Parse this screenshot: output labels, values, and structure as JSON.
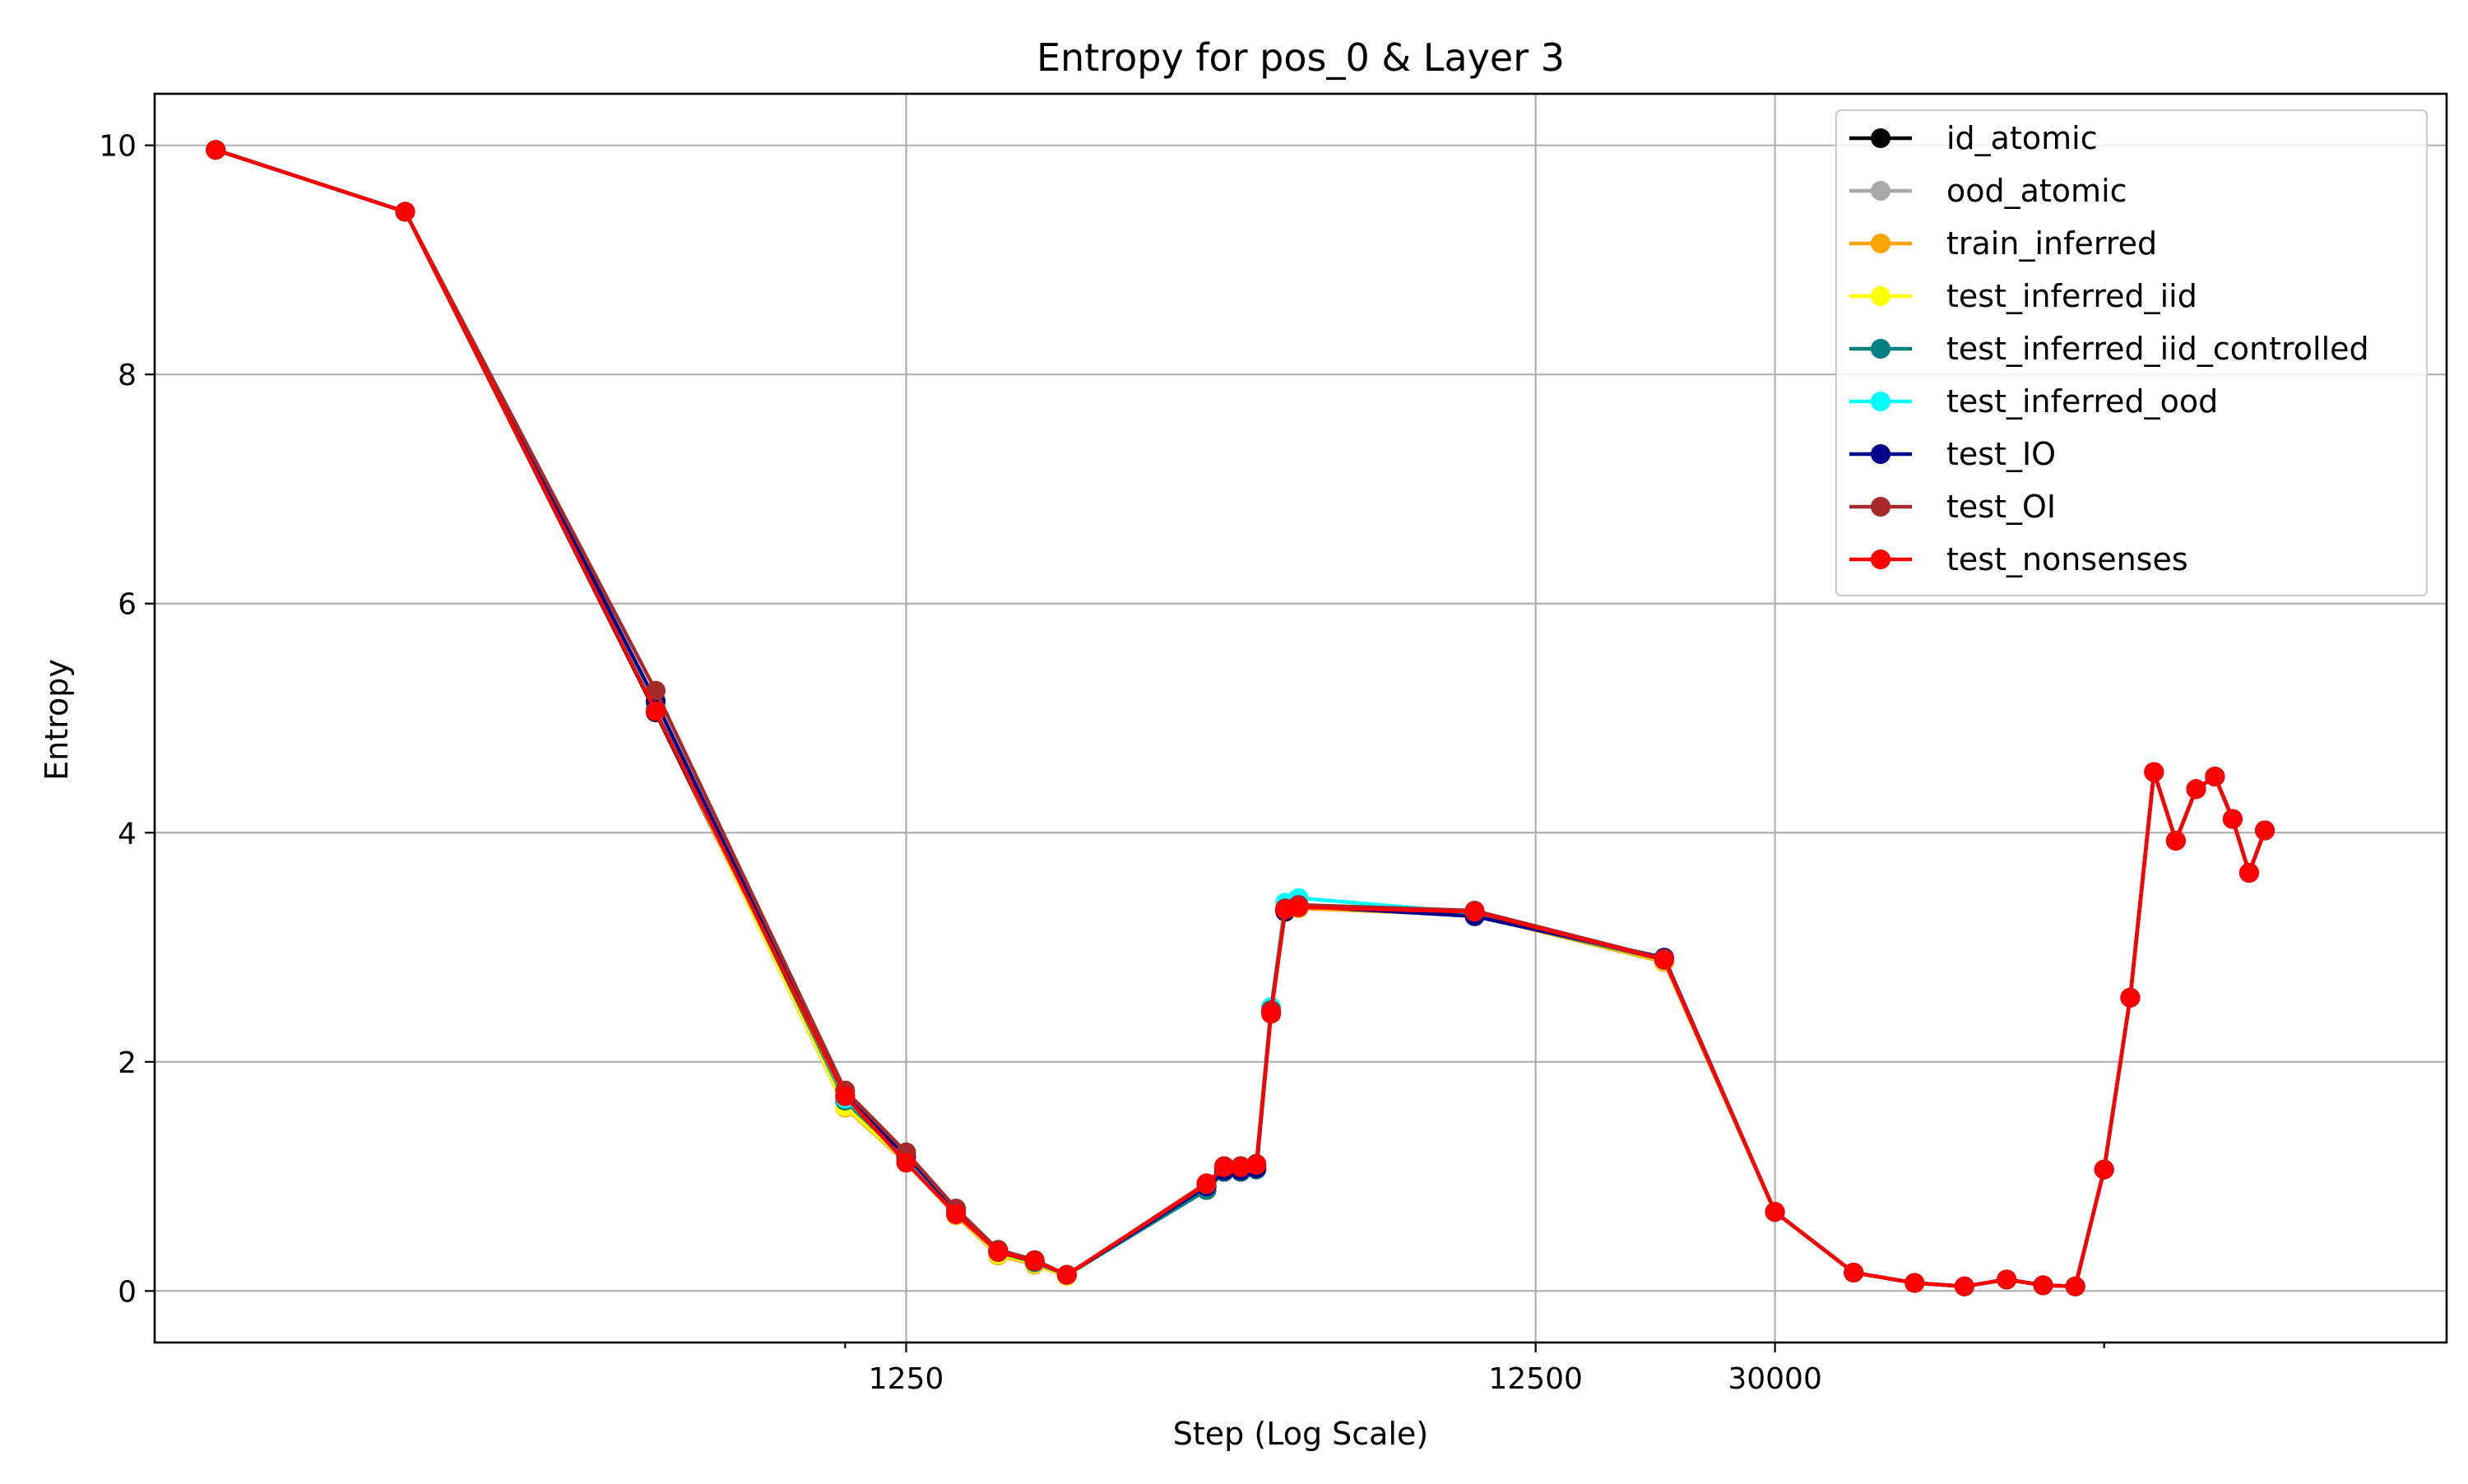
{
  "chart_data": {
    "type": "line",
    "title": "Entropy for pos_0 & Layer 3",
    "xlabel": "Step (Log Scale)",
    "ylabel": "Entropy",
    "x_scale": "log",
    "xlim": [
      80,
      350000
    ],
    "ylim": [
      -0.45,
      10.45
    ],
    "x_ticks": [
      {
        "value": 1250,
        "label": "1250"
      },
      {
        "value": 12500,
        "label": "12500"
      },
      {
        "value": 30000,
        "label": "30000"
      }
    ],
    "x_minor_ticks": [
      1000,
      100000
    ],
    "y_ticks": [
      {
        "value": 0,
        "label": "0"
      },
      {
        "value": 2,
        "label": "2"
      },
      {
        "value": 4,
        "label": "4"
      },
      {
        "value": 6,
        "label": "6"
      },
      {
        "value": 8,
        "label": "8"
      },
      {
        "value": 10,
        "label": "10"
      }
    ],
    "grid": true,
    "legend_position": "top-right",
    "x": [
      100,
      200,
      500,
      1000,
      1250,
      1500,
      1750,
      2000,
      2250,
      3750,
      4000,
      4250,
      4500,
      4750,
      5000,
      5250,
      10000,
      20000,
      30000,
      40000,
      50000,
      60000,
      70000,
      80000,
      90000,
      100000,
      110000,
      120000,
      130000,
      140000,
      150000,
      160000,
      170000,
      180000
    ],
    "series": [
      {
        "name": "id_atomic",
        "color": "#000000",
        "values": [
          9.96,
          9.42,
          5.05,
          1.65,
          1.16,
          0.7,
          0.34,
          0.26,
          0.14,
          0.92,
          1.04,
          1.04,
          1.06,
          2.44,
          3.31,
          3.37,
          3.29,
          2.89,
          0.69,
          0.16,
          0.07,
          0.04,
          0.1,
          0.05,
          0.04,
          1.06,
          2.56,
          4.53,
          3.93,
          4.38,
          4.49,
          4.12,
          3.65,
          4.02
        ]
      },
      {
        "name": "ood_atomic",
        "color": "#a9a9a9",
        "values": [
          9.96,
          9.42,
          5.1,
          1.66,
          1.16,
          0.69,
          0.34,
          0.25,
          0.14,
          0.92,
          1.06,
          1.06,
          1.08,
          2.44,
          3.33,
          3.37,
          3.3,
          2.89,
          0.69,
          0.16,
          0.07,
          0.04,
          0.1,
          0.05,
          0.04,
          1.06,
          2.56,
          4.53,
          3.93,
          4.38,
          4.49,
          4.12,
          3.65,
          4.02
        ]
      },
      {
        "name": "train_inferred",
        "color": "#ffa500",
        "values": [
          9.96,
          9.42,
          5.08,
          1.6,
          1.12,
          0.66,
          0.31,
          0.23,
          0.13,
          0.92,
          1.07,
          1.07,
          1.09,
          2.42,
          3.32,
          3.34,
          3.28,
          2.87,
          0.69,
          0.16,
          0.07,
          0.04,
          0.1,
          0.05,
          0.04,
          1.06,
          2.56,
          4.53,
          3.93,
          4.38,
          4.49,
          4.12,
          3.65,
          4.02
        ]
      },
      {
        "name": "test_inferred_iid",
        "color": "#ffff00",
        "values": [
          9.96,
          9.42,
          5.08,
          1.61,
          1.13,
          0.67,
          0.32,
          0.24,
          0.13,
          0.93,
          1.08,
          1.07,
          1.09,
          2.43,
          3.33,
          3.35,
          3.29,
          2.88,
          0.69,
          0.16,
          0.07,
          0.04,
          0.1,
          0.05,
          0.04,
          1.06,
          2.56,
          4.53,
          3.93,
          4.38,
          4.49,
          4.12,
          3.65,
          4.02
        ]
      },
      {
        "name": "test_inferred_iid_controlled",
        "color": "#008080",
        "values": [
          9.96,
          9.42,
          5.1,
          1.66,
          1.15,
          0.69,
          0.34,
          0.25,
          0.14,
          0.88,
          1.04,
          1.04,
          1.06,
          2.44,
          3.33,
          3.36,
          3.28,
          2.89,
          0.69,
          0.16,
          0.07,
          0.04,
          0.1,
          0.05,
          0.04,
          1.06,
          2.56,
          4.53,
          3.93,
          4.38,
          4.49,
          4.12,
          3.65,
          4.02
        ]
      },
      {
        "name": "test_inferred_ood",
        "color": "#00ffff",
        "values": [
          9.96,
          9.42,
          5.12,
          1.68,
          1.17,
          0.7,
          0.35,
          0.26,
          0.14,
          0.91,
          1.07,
          1.07,
          1.09,
          2.48,
          3.39,
          3.43,
          3.3,
          2.9,
          0.69,
          0.16,
          0.07,
          0.04,
          0.1,
          0.05,
          0.04,
          1.06,
          2.56,
          4.53,
          3.93,
          4.38,
          4.49,
          4.12,
          3.65,
          4.02
        ]
      },
      {
        "name": "test_IO",
        "color": "#00008b",
        "values": [
          9.96,
          9.42,
          5.15,
          1.7,
          1.18,
          0.71,
          0.35,
          0.26,
          0.14,
          0.91,
          1.05,
          1.05,
          1.07,
          2.45,
          3.32,
          3.36,
          3.27,
          2.91,
          0.69,
          0.16,
          0.07,
          0.04,
          0.1,
          0.05,
          0.04,
          1.06,
          2.56,
          4.53,
          3.93,
          4.38,
          4.49,
          4.12,
          3.65,
          4.02
        ]
      },
      {
        "name": "test_OI",
        "color": "#a52a2a",
        "values": [
          9.96,
          9.42,
          5.24,
          1.75,
          1.21,
          0.72,
          0.36,
          0.27,
          0.14,
          0.93,
          1.09,
          1.09,
          1.11,
          2.45,
          3.34,
          3.37,
          3.32,
          2.9,
          0.69,
          0.16,
          0.07,
          0.04,
          0.1,
          0.05,
          0.04,
          1.06,
          2.56,
          4.53,
          3.93,
          4.38,
          4.49,
          4.12,
          3.65,
          4.02
        ]
      },
      {
        "name": "test_nonsenses",
        "color": "#ff0000",
        "values": [
          9.96,
          9.42,
          5.06,
          1.7,
          1.12,
          0.67,
          0.34,
          0.26,
          0.14,
          0.94,
          1.08,
          1.08,
          1.1,
          2.42,
          3.33,
          3.35,
          3.31,
          2.89,
          0.69,
          0.16,
          0.07,
          0.04,
          0.1,
          0.05,
          0.04,
          1.06,
          2.56,
          4.53,
          3.93,
          4.38,
          4.49,
          4.12,
          3.65,
          4.02
        ]
      }
    ]
  }
}
